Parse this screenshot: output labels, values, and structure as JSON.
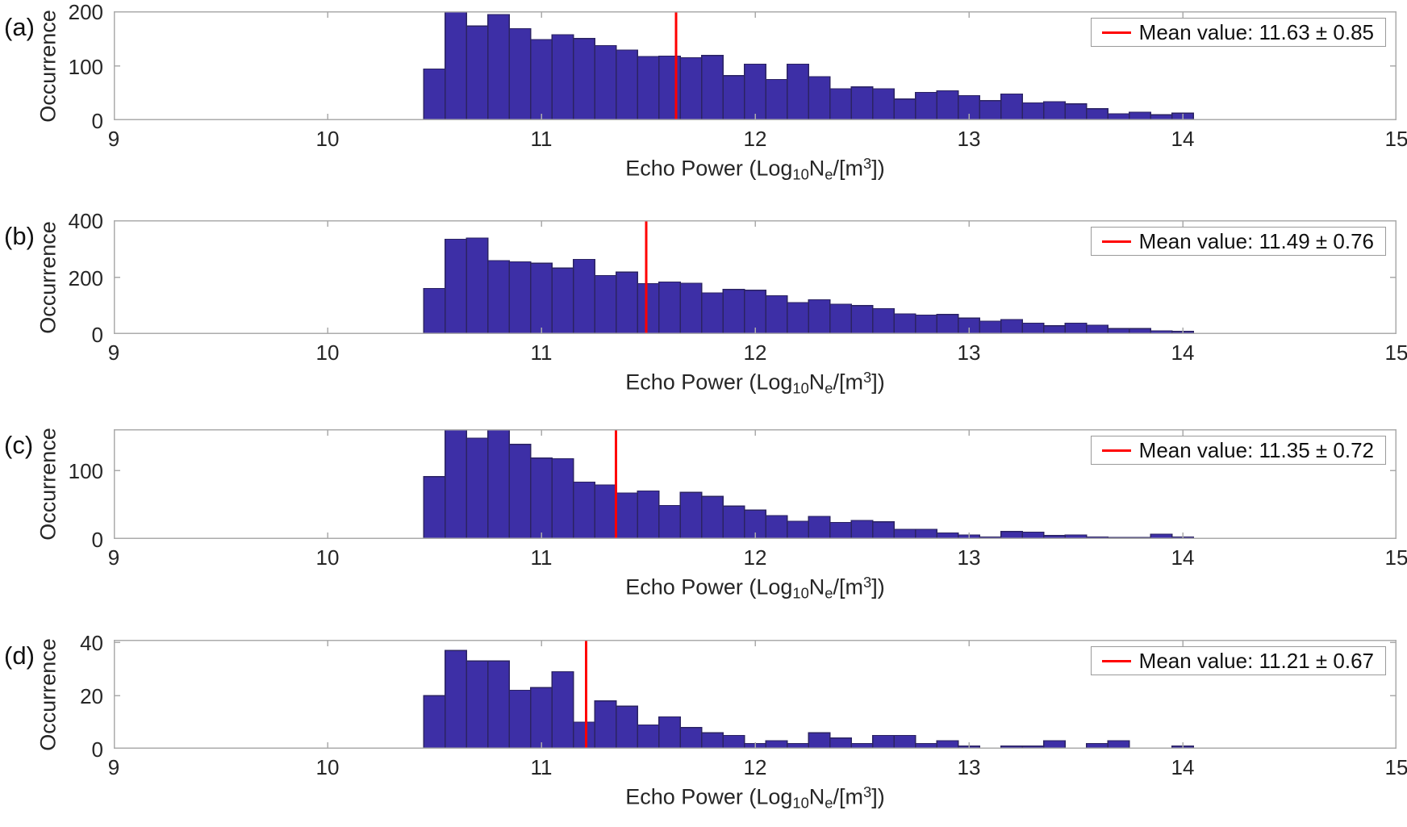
{
  "figure": {
    "background": "#ffffff",
    "bar_fill": "#3D2FA6",
    "bar_edge": "#2B2363",
    "mean_line_color": "#FF0000",
    "axis_color": "#ABABAB",
    "text_color": "#262626"
  },
  "xlabel_parts": {
    "pre": "Echo Power (Log",
    "sub1": "10",
    "n": "N",
    "sub2": "e",
    "mid": "/[m",
    "sup": "3",
    "post": "])"
  },
  "chart_data": [
    {
      "type": "bar",
      "panel_label": "(a)",
      "ylabel": "Occurrence",
      "xlabel": "Echo Power (Log10 Ne/[m3])",
      "legend": "Mean value: 11.63 ± 0.85",
      "legend_position": "top-right",
      "grid": false,
      "mean": 11.63,
      "std": 0.85,
      "xlim": [
        9,
        15
      ],
      "xticks": [
        9,
        10,
        11,
        12,
        13,
        14,
        15
      ],
      "ylim": [
        0,
        200
      ],
      "yticks": [
        0,
        100,
        200
      ],
      "bin_start": 10.45,
      "bin_width": 0.1,
      "values": [
        94,
        200,
        173,
        194,
        168,
        148,
        157,
        150,
        137,
        129,
        117,
        118,
        115,
        119,
        82,
        103,
        75,
        103,
        80,
        58,
        61,
        58,
        39,
        51,
        54,
        45,
        36,
        48,
        32,
        34,
        30,
        21,
        12,
        15,
        10,
        13
      ]
    },
    {
      "type": "bar",
      "panel_label": "(b)",
      "ylabel": "Occurrence",
      "xlabel": "Echo Power (Log10 Ne/[m3])",
      "legend": "Mean value: 11.49 ± 0.76",
      "legend_position": "top-right",
      "grid": false,
      "mean": 11.49,
      "std": 0.76,
      "xlim": [
        9,
        15
      ],
      "xticks": [
        9,
        10,
        11,
        12,
        13,
        14,
        15
      ],
      "ylim": [
        0,
        400
      ],
      "yticks": [
        0,
        200,
        400
      ],
      "bin_start": 10.45,
      "bin_width": 0.1,
      "values": [
        160,
        333,
        338,
        258,
        254,
        249,
        232,
        262,
        206,
        218,
        177,
        183,
        179,
        145,
        157,
        154,
        135,
        111,
        121,
        105,
        100,
        89,
        71,
        67,
        69,
        56,
        45,
        51,
        38,
        29,
        38,
        31,
        19,
        19,
        11,
        9
      ]
    },
    {
      "type": "bar",
      "panel_label": "(c)",
      "ylabel": "Occurrence",
      "xlabel": "Echo Power (Log10 Ne/[m3])",
      "legend": "Mean value: 11.35 ± 0.72",
      "legend_position": "top-right",
      "grid": false,
      "mean": 11.35,
      "std": 0.72,
      "xlim": [
        9,
        15
      ],
      "xticks": [
        9,
        10,
        11,
        12,
        13,
        14,
        15
      ],
      "ylim": [
        0,
        160
      ],
      "yticks": [
        0,
        100
      ],
      "bin_start": 10.45,
      "bin_width": 0.1,
      "values": [
        91,
        159,
        147,
        160,
        138,
        118,
        117,
        83,
        79,
        67,
        70,
        49,
        68,
        62,
        48,
        42,
        34,
        26,
        33,
        24,
        27,
        25,
        14,
        14,
        9,
        6,
        3,
        11,
        10,
        5,
        6,
        3,
        2,
        2,
        7,
        3
      ]
    },
    {
      "type": "bar",
      "panel_label": "(d)",
      "ylabel": "Occurrence",
      "xlabel": "Echo Power (Log10 Ne/[m3])",
      "legend": "Mean value: 11.21 ± 0.67",
      "legend_position": "top-right",
      "grid": false,
      "mean": 11.21,
      "std": 0.67,
      "xlim": [
        9,
        15
      ],
      "xticks": [
        9,
        10,
        11,
        12,
        13,
        14,
        15
      ],
      "ylim": [
        0,
        41
      ],
      "yticks": [
        0,
        20,
        40
      ],
      "bin_start": 10.45,
      "bin_width": 0.1,
      "values": [
        20,
        37,
        33,
        33,
        22,
        23,
        29,
        10,
        18,
        16,
        9,
        12,
        8,
        6,
        5,
        2,
        3,
        2,
        6,
        4,
        2,
        5,
        5,
        2,
        3,
        1,
        0,
        1,
        1,
        3,
        0,
        2,
        3,
        0,
        0,
        1
      ]
    }
  ]
}
